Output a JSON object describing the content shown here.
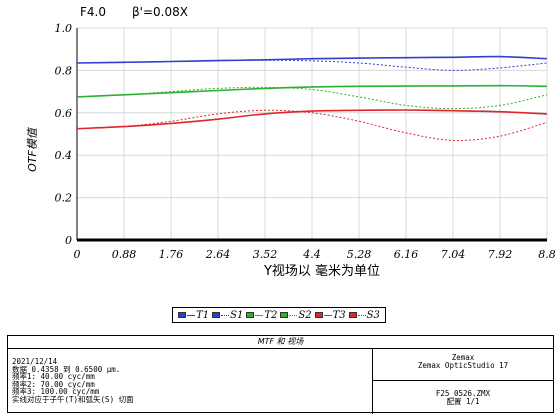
{
  "chart_data": {
    "type": "line",
    "title_fnum": "F4.0",
    "title_mag": "β'=0.08X",
    "ylabel": "OTF模值",
    "xlabel": "Y视场以 毫米为单位",
    "xlim": [
      0,
      8.8
    ],
    "ylim": [
      0,
      1.0
    ],
    "x_ticks": [
      "0",
      "0.88",
      "1.76",
      "2.64",
      "3.52",
      "4.4",
      "5.28",
      "6.16",
      "7.04",
      "7.92",
      "8.8"
    ],
    "y_ticks": [
      "0",
      "0.2",
      "0.4",
      "0.6",
      "0.8",
      "1.0"
    ],
    "grid": true,
    "x": [
      0,
      0.88,
      1.76,
      2.64,
      3.52,
      4.4,
      5.28,
      6.16,
      7.04,
      7.92,
      8.8
    ],
    "series": [
      {
        "name": "T1",
        "color": "#2f3fd0",
        "dash": false,
        "values": [
          0.835,
          0.838,
          0.842,
          0.846,
          0.85,
          0.855,
          0.858,
          0.86,
          0.862,
          0.865,
          0.855
        ]
      },
      {
        "name": "S1",
        "color": "#2f3fd0",
        "dash": true,
        "values": [
          0.835,
          0.838,
          0.842,
          0.846,
          0.848,
          0.845,
          0.835,
          0.815,
          0.8,
          0.812,
          0.835
        ]
      },
      {
        "name": "T2",
        "color": "#2fb02f",
        "dash": false,
        "values": [
          0.675,
          0.685,
          0.695,
          0.705,
          0.715,
          0.722,
          0.725,
          0.726,
          0.727,
          0.728,
          0.725
        ]
      },
      {
        "name": "S2",
        "color": "#2fb02f",
        "dash": true,
        "values": [
          0.675,
          0.685,
          0.7,
          0.715,
          0.72,
          0.71,
          0.675,
          0.635,
          0.62,
          0.635,
          0.685
        ]
      },
      {
        "name": "T3",
        "color": "#e0252b",
        "dash": false,
        "values": [
          0.525,
          0.535,
          0.55,
          0.57,
          0.595,
          0.608,
          0.612,
          0.613,
          0.61,
          0.605,
          0.595
        ]
      },
      {
        "name": "S3",
        "color": "#e0252b",
        "dash": true,
        "values": [
          0.525,
          0.535,
          0.56,
          0.595,
          0.612,
          0.6,
          0.56,
          0.505,
          0.47,
          0.49,
          0.555
        ]
      }
    ]
  },
  "legend": {
    "items": [
      {
        "label": "T1",
        "color": "#2f3fd0",
        "dash": false
      },
      {
        "label": "S1",
        "color": "#2f3fd0",
        "dash": true
      },
      {
        "label": "T2",
        "color": "#2fb02f",
        "dash": false
      },
      {
        "label": "S2",
        "color": "#2fb02f",
        "dash": true
      },
      {
        "label": "T3",
        "color": "#e0252b",
        "dash": false
      },
      {
        "label": "S3",
        "color": "#e0252b",
        "dash": true
      }
    ]
  },
  "footer": {
    "title": "MTF 和 视场",
    "lines": [
      "2021/12/14",
      "数据 0.4358 到 0.6500 μm.",
      "频率1:    40.00 cyc/mm",
      "频率2:    70.00 cyc/mm",
      "频率3:   100.00 cyc/mm",
      "实线对应于子午(T)和弧矢(S) 切面"
    ],
    "company": "Zemax",
    "product": "Zemax OpticStudio 17",
    "filename": "F25_0526.ZMX",
    "config": "配置 1/1"
  }
}
